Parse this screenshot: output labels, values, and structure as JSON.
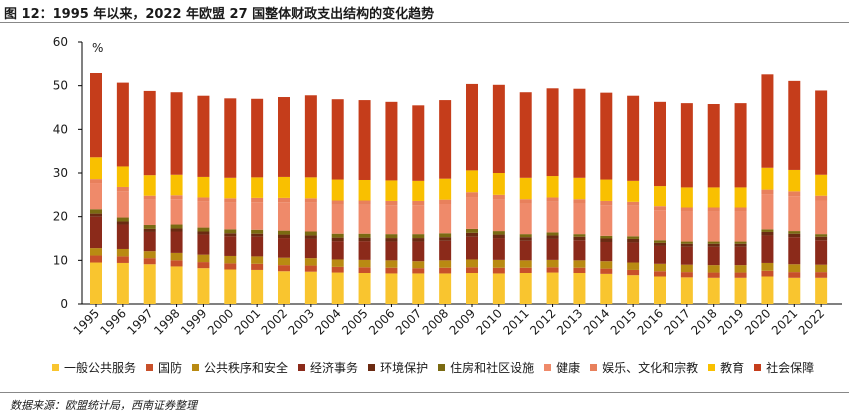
{
  "header": {
    "title": "图 12：1995 年以来，2022 年欧盟 27 国整体财政支出结构的变化趋势"
  },
  "footer": {
    "source": "数据来源：欧盟统计局，西南证券整理"
  },
  "colors": {
    "一般公共服务": "#F9C52F",
    "国防": "#C8502A",
    "公共秩序和安全": "#B98A12",
    "经济事务": "#8B2A1A",
    "环境保护": "#6B2A12",
    "住房和社区设施": "#7A6A12",
    "健康": "#EF8A6A",
    "娱乐、文化和宗教": "#E8805C",
    "教育": "#F9C000",
    "社会保障": "#C53D1B"
  },
  "chart_data": {
    "type": "bar",
    "stacked": true,
    "title": "图 12：1995 年以来，2022 年欧盟 27 国整体财政支出结构的变化趋势",
    "xlabel": "",
    "ylabel": "%",
    "ylim": [
      0,
      60
    ],
    "yticks": [
      0,
      10,
      20,
      30,
      40,
      50,
      60
    ],
    "grid": false,
    "legend_position": "bottom",
    "categories": [
      "1995",
      "1996",
      "1997",
      "1998",
      "1999",
      "2000",
      "2001",
      "2002",
      "2003",
      "2004",
      "2005",
      "2006",
      "2007",
      "2008",
      "2009",
      "2010",
      "2011",
      "2012",
      "2013",
      "2014",
      "2015",
      "2016",
      "2017",
      "2018",
      "2019",
      "2020",
      "2021",
      "2022"
    ],
    "series": [
      {
        "name": "一般公共服务",
        "values": [
          9.5,
          9.4,
          9.1,
          8.6,
          8.2,
          7.9,
          7.8,
          7.5,
          7.4,
          7.2,
          7.1,
          7.0,
          7.0,
          7.0,
          7.1,
          7.0,
          7.1,
          7.2,
          7.1,
          6.9,
          6.6,
          6.3,
          6.1,
          6.0,
          6.0,
          6.3,
          6.0,
          6.0
        ]
      },
      {
        "name": "国防",
        "values": [
          1.6,
          1.5,
          1.4,
          1.4,
          1.4,
          1.4,
          1.4,
          1.4,
          1.4,
          1.3,
          1.3,
          1.3,
          1.2,
          1.3,
          1.3,
          1.3,
          1.2,
          1.2,
          1.2,
          1.2,
          1.2,
          1.2,
          1.2,
          1.2,
          1.2,
          1.3,
          1.3,
          1.3
        ]
      },
      {
        "name": "公共秩序和安全",
        "values": [
          1.7,
          1.7,
          1.6,
          1.7,
          1.7,
          1.7,
          1.7,
          1.7,
          1.7,
          1.7,
          1.7,
          1.7,
          1.6,
          1.7,
          1.8,
          1.8,
          1.7,
          1.7,
          1.7,
          1.7,
          1.7,
          1.7,
          1.7,
          1.7,
          1.7,
          1.8,
          1.8,
          1.7
        ]
      },
      {
        "name": "经济事务",
        "values": [
          7.2,
          5.6,
          4.4,
          4.9,
          4.6,
          4.5,
          4.5,
          4.5,
          4.4,
          4.2,
          4.3,
          4.3,
          4.5,
          4.5,
          5.2,
          5.0,
          4.5,
          4.8,
          4.6,
          4.4,
          4.6,
          4.1,
          4.1,
          4.2,
          4.2,
          6.3,
          6.2,
          5.6
        ]
      },
      {
        "name": "环境保护",
        "values": [
          0.7,
          0.7,
          0.7,
          0.7,
          0.7,
          0.7,
          0.7,
          0.8,
          0.8,
          0.8,
          0.8,
          0.8,
          0.8,
          0.8,
          0.9,
          0.8,
          0.8,
          0.8,
          0.8,
          0.8,
          0.8,
          0.7,
          0.7,
          0.7,
          0.7,
          0.8,
          0.8,
          0.8
        ]
      },
      {
        "name": "住房和社区设施",
        "values": [
          1.0,
          0.9,
          0.9,
          0.9,
          0.9,
          0.9,
          0.9,
          0.9,
          0.9,
          0.9,
          0.9,
          0.9,
          0.9,
          0.9,
          0.9,
          0.8,
          0.7,
          0.7,
          0.6,
          0.6,
          0.6,
          0.6,
          0.5,
          0.5,
          0.5,
          0.6,
          0.6,
          0.6
        ]
      },
      {
        "name": "健康",
        "values": [
          6.0,
          6.0,
          5.8,
          5.8,
          6.0,
          6.1,
          6.3,
          6.5,
          6.6,
          6.6,
          6.6,
          6.6,
          6.6,
          6.7,
          7.3,
          7.2,
          7.0,
          7.0,
          7.0,
          7.0,
          7.0,
          6.9,
          6.9,
          6.9,
          6.9,
          8.0,
          8.0,
          7.7
        ]
      },
      {
        "name": "娱乐、文化和宗教",
        "values": [
          0.9,
          1.0,
          0.9,
          0.9,
          0.9,
          1.0,
          1.0,
          1.0,
          1.0,
          1.0,
          1.0,
          1.0,
          1.0,
          1.0,
          1.1,
          1.1,
          1.0,
          1.0,
          1.0,
          1.0,
          0.9,
          0.9,
          0.9,
          0.9,
          0.9,
          1.1,
          1.1,
          1.1
        ]
      },
      {
        "name": "教育",
        "values": [
          5.0,
          4.7,
          4.7,
          4.7,
          4.7,
          4.7,
          4.7,
          4.8,
          4.8,
          4.8,
          4.7,
          4.7,
          4.6,
          4.8,
          5.0,
          5.0,
          4.9,
          4.9,
          4.9,
          4.9,
          4.8,
          4.6,
          4.6,
          4.6,
          4.6,
          5.0,
          4.9,
          4.8
        ]
      },
      {
        "name": "社会保障",
        "values": [
          19.3,
          19.2,
          19.3,
          18.9,
          18.6,
          18.2,
          18.0,
          18.3,
          18.8,
          18.4,
          18.3,
          18.0,
          17.3,
          18.0,
          19.8,
          20.2,
          19.6,
          20.1,
          20.4,
          19.9,
          19.5,
          19.3,
          19.3,
          19.1,
          19.3,
          21.4,
          20.4,
          19.3
        ]
      }
    ]
  }
}
